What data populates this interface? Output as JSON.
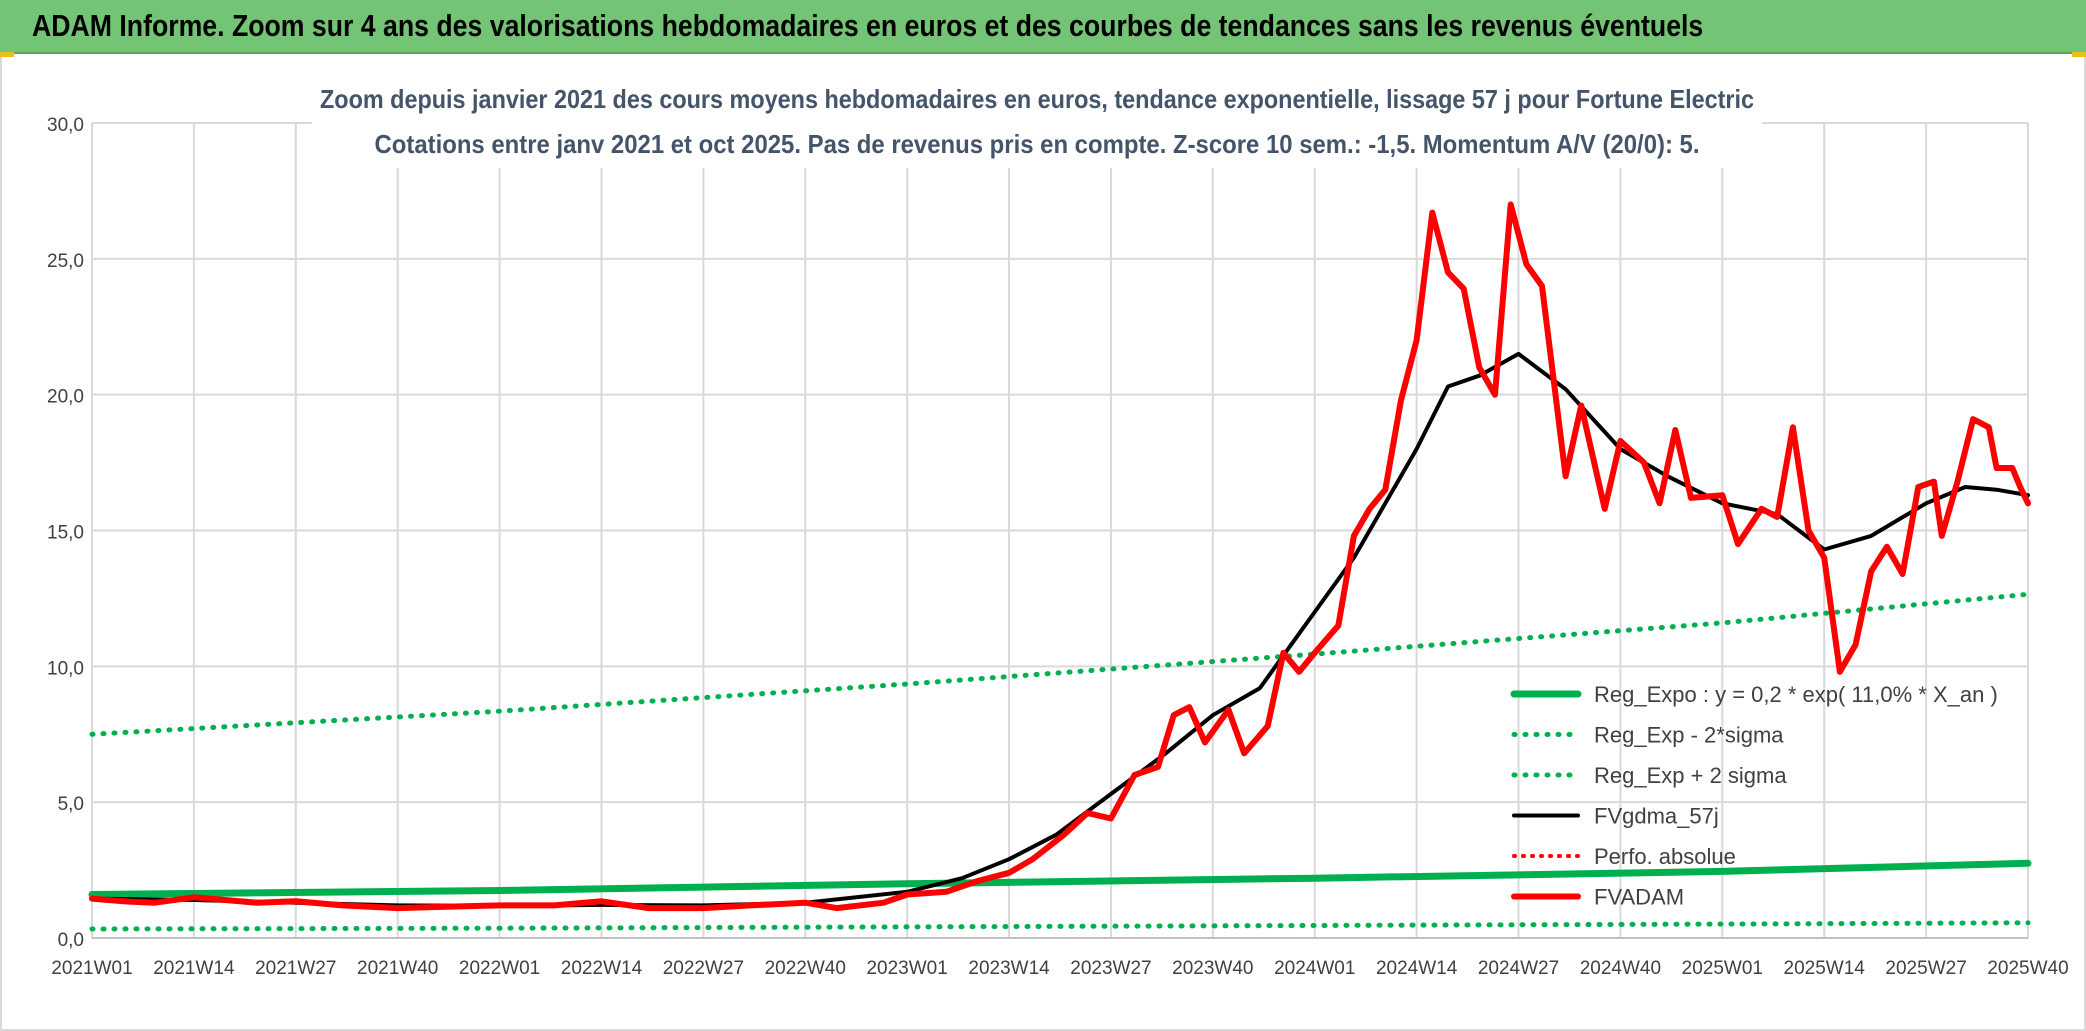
{
  "header": {
    "title": "ADAM Informe. Zoom sur 4 ans des valorisations hebdomadaires en euros et des courbes de tendances sans les revenus éventuels"
  },
  "colors": {
    "banner": "#74c475",
    "fvadam": "#ff0000",
    "fvgdma": "#000000",
    "reg": "#00b050",
    "perfo": "#ff0000",
    "grid": "#d9d9d9",
    "text": "#404040",
    "title": "#44546a"
  },
  "chart_data": {
    "type": "line",
    "title_line1": "Zoom depuis janvier 2021 des cours moyens hebdomadaires en euros, tendance exponentielle, lissage 57 j pour Fortune Electric",
    "title_line2": "Cotations entre janv 2021 et oct 2025. Pas de revenus pris en compte. Z-score 10 sem.: -1,5. Momentum A/V (20/0): 5.",
    "ylim": [
      0,
      30
    ],
    "y_ticks": [
      "0,0",
      "5,0",
      "10,0",
      "15,0",
      "20,0",
      "25,0",
      "30,0"
    ],
    "x_ticks": [
      "2021W01",
      "2021W14",
      "2021W27",
      "2021W40",
      "2022W01",
      "2022W14",
      "2022W27",
      "2022W40",
      "2023W01",
      "2023W14",
      "2023W27",
      "2023W40",
      "2024W01",
      "2024W14",
      "2024W27",
      "2024W40",
      "2025W01",
      "2025W14",
      "2025W27",
      "2025W40"
    ],
    "grid": true,
    "legend_position": "bottom-right",
    "series": [
      {
        "name": "Reg_Expo : y = 0,2 * exp( 11,0% *  X_an )",
        "style": "solid",
        "points": [
          [
            "2021W01",
            1.6
          ],
          [
            "2022W01",
            1.75
          ],
          [
            "2023W01",
            2.0
          ],
          [
            "2024W01",
            2.2
          ],
          [
            "2025W01",
            2.45
          ],
          [
            "2025W40",
            2.75
          ]
        ]
      },
      {
        "name": "Reg_Exp - 2*sigma",
        "style": "dotted",
        "points": [
          [
            "2021W01",
            0.33
          ],
          [
            "2022W01",
            0.36
          ],
          [
            "2023W01",
            0.41
          ],
          [
            "2024W01",
            0.46
          ],
          [
            "2025W01",
            0.51
          ],
          [
            "2025W40",
            0.56
          ]
        ]
      },
      {
        "name": "Reg_Exp + 2 sigma",
        "style": "dotted",
        "points": [
          [
            "2021W01",
            7.5
          ],
          [
            "2022W01",
            8.35
          ],
          [
            "2023W01",
            9.35
          ],
          [
            "2024W01",
            10.45
          ],
          [
            "2025W01",
            11.6
          ],
          [
            "2025W40",
            12.65
          ]
        ]
      },
      {
        "name": "FVgdma_57j",
        "style": "solid",
        "points": [
          [
            "2021W01",
            1.45
          ],
          [
            "2021W14",
            1.4
          ],
          [
            "2021W27",
            1.3
          ],
          [
            "2021W40",
            1.2
          ],
          [
            "2022W01",
            1.18
          ],
          [
            "2022W14",
            1.22
          ],
          [
            "2022W27",
            1.2
          ],
          [
            "2022W40",
            1.3
          ],
          [
            "2023W01",
            1.7
          ],
          [
            "2023W08",
            2.2
          ],
          [
            "2023W14",
            2.9
          ],
          [
            "2023W20",
            3.8
          ],
          [
            "2023W27",
            5.3
          ],
          [
            "2023W34",
            6.8
          ],
          [
            "2023W40",
            8.2
          ],
          [
            "2023W46",
            9.2
          ],
          [
            "2024W01",
            12.0
          ],
          [
            "2024W06",
            14.0
          ],
          [
            "2024W14",
            18.0
          ],
          [
            "2024W18",
            20.3
          ],
          [
            "2024W22",
            20.7
          ],
          [
            "2024W27",
            21.5
          ],
          [
            "2024W33",
            20.2
          ],
          [
            "2024W40",
            18.0
          ],
          [
            "2024W46",
            17.0
          ],
          [
            "2025W01",
            16.0
          ],
          [
            "2025W08",
            15.6
          ],
          [
            "2025W14",
            14.3
          ],
          [
            "2025W20",
            14.8
          ],
          [
            "2025W27",
            16.0
          ],
          [
            "2025W32",
            16.6
          ],
          [
            "2025W36",
            16.5
          ],
          [
            "2025W40",
            16.3
          ]
        ]
      },
      {
        "name": "Perfo. absolue",
        "style": "dotted",
        "points": []
      },
      {
        "name": "FVADAM",
        "style": "solid",
        "points": [
          [
            "2021W01",
            1.45
          ],
          [
            "2021W05",
            1.35
          ],
          [
            "2021W09",
            1.3
          ],
          [
            "2021W14",
            1.5
          ],
          [
            "2021W18",
            1.4
          ],
          [
            "2021W22",
            1.3
          ],
          [
            "2021W27",
            1.35
          ],
          [
            "2021W33",
            1.2
          ],
          [
            "2021W40",
            1.1
          ],
          [
            "2021W46",
            1.15
          ],
          [
            "2022W01",
            1.2
          ],
          [
            "2022W08",
            1.2
          ],
          [
            "2022W14",
            1.35
          ],
          [
            "2022W20",
            1.1
          ],
          [
            "2022W27",
            1.1
          ],
          [
            "2022W33",
            1.2
          ],
          [
            "2022W40",
            1.3
          ],
          [
            "2022W44",
            1.1
          ],
          [
            "2022W50",
            1.3
          ],
          [
            "2023W01",
            1.6
          ],
          [
            "2023W06",
            1.7
          ],
          [
            "2023W10",
            2.1
          ],
          [
            "2023W14",
            2.4
          ],
          [
            "2023W17",
            2.9
          ],
          [
            "2023W21",
            3.8
          ],
          [
            "2023W24",
            4.6
          ],
          [
            "2023W27",
            4.4
          ],
          [
            "2023W30",
            6.0
          ],
          [
            "2023W33",
            6.3
          ],
          [
            "2023W35",
            8.2
          ],
          [
            "2023W37",
            8.5
          ],
          [
            "2023W39",
            7.2
          ],
          [
            "2023W42",
            8.4
          ],
          [
            "2023W44",
            6.8
          ],
          [
            "2023W47",
            7.8
          ],
          [
            "2023W49",
            10.5
          ],
          [
            "2023W51",
            9.8
          ],
          [
            "2024W01",
            10.5
          ],
          [
            "2024W04",
            11.5
          ],
          [
            "2024W06",
            14.8
          ],
          [
            "2024W08",
            15.8
          ],
          [
            "2024W10",
            16.5
          ],
          [
            "2024W12",
            19.8
          ],
          [
            "2024W14",
            22.0
          ],
          [
            "2024W16",
            26.7
          ],
          [
            "2024W18",
            24.5
          ],
          [
            "2024W20",
            23.9
          ],
          [
            "2024W22",
            21.0
          ],
          [
            "2024W24",
            20.0
          ],
          [
            "2024W26",
            27.0
          ],
          [
            "2024W28",
            24.8
          ],
          [
            "2024W30",
            24.0
          ],
          [
            "2024W33",
            17.0
          ],
          [
            "2024W35",
            19.6
          ],
          [
            "2024W38",
            15.8
          ],
          [
            "2024W40",
            18.3
          ],
          [
            "2024W43",
            17.5
          ],
          [
            "2024W45",
            16.0
          ],
          [
            "2024W47",
            18.7
          ],
          [
            "2024W49",
            16.2
          ],
          [
            "2025W01",
            16.3
          ],
          [
            "2025W03",
            14.5
          ],
          [
            "2025W06",
            15.8
          ],
          [
            "2025W08",
            15.5
          ],
          [
            "2025W10",
            18.8
          ],
          [
            "2025W12",
            15.0
          ],
          [
            "2025W14",
            14.0
          ],
          [
            "2025W16",
            9.8
          ],
          [
            "2025W18",
            10.8
          ],
          [
            "2025W20",
            13.5
          ],
          [
            "2025W22",
            14.4
          ],
          [
            "2025W24",
            13.4
          ],
          [
            "2025W26",
            16.6
          ],
          [
            "2025W28",
            16.8
          ],
          [
            "2025W29",
            14.8
          ],
          [
            "2025W31",
            16.8
          ],
          [
            "2025W33",
            19.1
          ],
          [
            "2025W35",
            18.8
          ],
          [
            "2025W36",
            17.3
          ],
          [
            "2025W38",
            17.3
          ],
          [
            "2025W39",
            16.6
          ],
          [
            "2025W40",
            16.0
          ]
        ]
      }
    ]
  }
}
